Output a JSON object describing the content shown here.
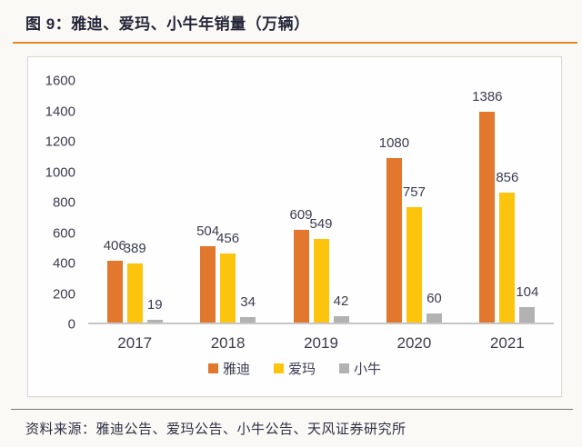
{
  "page": {
    "title": "图 9：雅迪、爱玛、小牛年销量（万辆）",
    "source_note": "资料来源：雅迪公告、爱玛公告、小牛公告、天风证券研究所"
  },
  "colors": {
    "accent_underline": "#E2862F",
    "series_yadea": "#E2772E",
    "series_aima": "#FDC40D",
    "series_niu": "#B2B2B2",
    "axis_line": "#C6C6C6",
    "text_dark": "#2F2F44"
  },
  "chart_data": {
    "type": "bar",
    "title": "雅迪、爱玛、小牛年销量（万辆）",
    "categories": [
      "2017",
      "2018",
      "2019",
      "2020",
      "2021"
    ],
    "series": [
      {
        "name": "雅迪",
        "color": "#E2772E",
        "values": [
          406,
          504,
          609,
          1080,
          1386
        ]
      },
      {
        "name": "爱玛",
        "color": "#FDC40D",
        "values": [
          389,
          456,
          549,
          757,
          856
        ]
      },
      {
        "name": "小牛",
        "color": "#B2B2B2",
        "values": [
          19,
          34,
          42,
          60,
          104
        ]
      }
    ],
    "xlabel": "",
    "ylabel": "",
    "ylim": [
      0,
      1600
    ],
    "ytick_step": 200,
    "grid": false,
    "legend_position": "bottom",
    "data_labels": true
  }
}
